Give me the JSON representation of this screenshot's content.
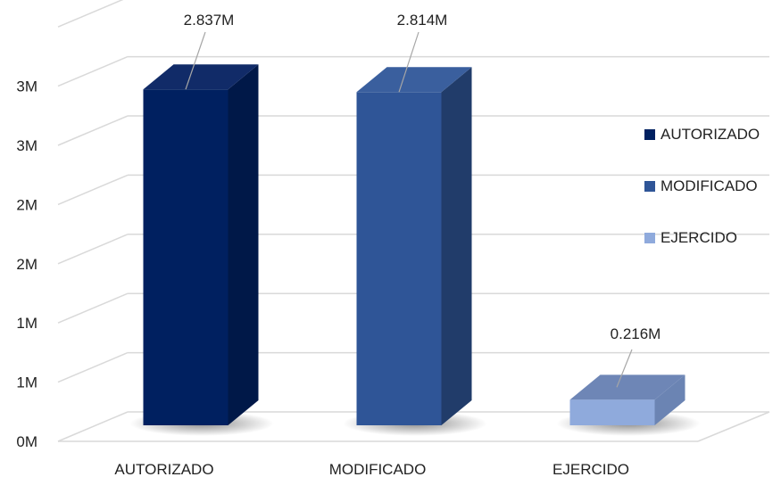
{
  "chart_data": {
    "type": "bar",
    "categories": [
      "AUTORIZADO",
      "MODIFICADO",
      "EJERCIDO"
    ],
    "values": [
      2.837,
      2.814,
      0.216
    ],
    "data_labels": [
      "2.837M",
      "2.814M",
      "0.216M"
    ],
    "y_tick_labels": [
      "0M",
      "1M",
      "1M",
      "2M",
      "2M",
      "3M",
      "3M"
    ],
    "ylim": [
      0,
      3.5
    ],
    "grid": true,
    "legend": {
      "placement": "right",
      "entries": [
        "AUTORIZADO",
        "MODIFICADO",
        "EJERCIDO"
      ]
    },
    "colors": {
      "front": [
        "#002060",
        "#2F5597",
        "#8FAADC"
      ],
      "side": [
        "#001848",
        "#213C6A",
        "#6B84B3"
      ],
      "top": [
        "#112B68",
        "#3A5F9E",
        "#6E86B6"
      ],
      "grid": "#D9D9D9",
      "label_line": "#A6A6A6"
    }
  }
}
